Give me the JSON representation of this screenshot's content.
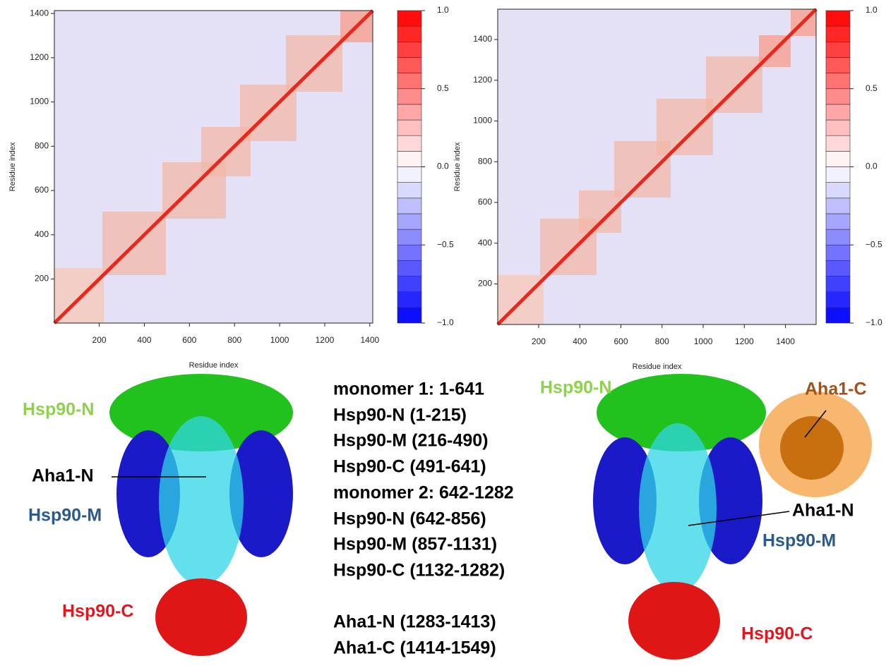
{
  "panels": [
    {
      "ylabel": "Residue index",
      "xlabel": "Residue index",
      "xlim": [
        1,
        1413
      ],
      "ylim": [
        1,
        1413
      ],
      "xticks": [
        200,
        400,
        600,
        800,
        1000,
        1200,
        1400
      ],
      "yticks": [
        200,
        400,
        600,
        800,
        1000,
        1200,
        1400
      ],
      "colorbar": {
        "lim": [
          -1,
          1
        ],
        "ticks": [
          {
            "value": 1,
            "label": "1.0"
          },
          {
            "value": 0.5,
            "label": "0.5"
          },
          {
            "value": 0,
            "label": "0.0"
          },
          {
            "value": -0.5,
            "label": "−0.5"
          },
          {
            "value": -1,
            "label": "−1.0"
          }
        ]
      }
    },
    {
      "ylabel": "Residue index",
      "xlabel": "Residue index",
      "xlim": [
        1,
        1549
      ],
      "ylim": [
        1,
        1549
      ],
      "xticks": [
        200,
        400,
        600,
        800,
        1000,
        1200,
        1400
      ],
      "yticks": [
        200,
        400,
        600,
        800,
        1000,
        1200,
        1400
      ],
      "colorbar": {
        "lim": [
          -1,
          1
        ],
        "ticks": [
          {
            "value": 1,
            "label": "1.0"
          },
          {
            "value": 0.5,
            "label": "0.5"
          },
          {
            "value": 0,
            "label": "0.0"
          },
          {
            "value": -0.5,
            "label": "−0.5"
          },
          {
            "value": -1,
            "label": "−1.0"
          }
        ]
      }
    }
  ],
  "structures": [
    {
      "labels": [
        {
          "text": "Hsp90-N",
          "color": "#8cd24a"
        },
        {
          "text": "Aha1-N",
          "color": "#000000"
        },
        {
          "text": "Hsp90-M",
          "color": "#2b5b8c"
        },
        {
          "text": "Hsp90-C",
          "color": "#e8141c"
        }
      ]
    },
    {
      "labels": [
        {
          "text": "Hsp90-N",
          "color": "#8cd24a"
        },
        {
          "text": "Aha1-C",
          "color": "#a0521a"
        },
        {
          "text": "Aha1-N",
          "color": "#000000"
        },
        {
          "text": "Hsp90-M",
          "color": "#2b5b8c"
        },
        {
          "text": "Hsp90-C",
          "color": "#e8141c"
        }
      ]
    }
  ],
  "residue_ranges": [
    "monomer 1: 1-641",
    "Hsp90-N (1-215)",
    "Hsp90-M (216-490)",
    "Hsp90-C (491-641)",
    "monomer 2: 642-1282",
    "Hsp90-N (642-856)",
    "Hsp90-M (857-1131)",
    "Hsp90-C (1132-1282)",
    "Aha1-N (1283-1413)",
    "Aha1-C (1414-1549)"
  ]
}
